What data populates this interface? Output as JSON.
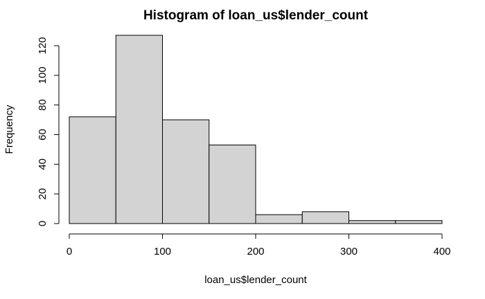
{
  "chart_data": {
    "type": "histogram",
    "title": "Histogram of loan_us$lender_count",
    "xlabel": "loan_us$lender_count",
    "ylabel": "Frequency",
    "bins": [
      {
        "start": 0,
        "end": 50,
        "count": 72
      },
      {
        "start": 50,
        "end": 100,
        "count": 127
      },
      {
        "start": 100,
        "end": 150,
        "count": 70
      },
      {
        "start": 150,
        "end": 200,
        "count": 53
      },
      {
        "start": 200,
        "end": 250,
        "count": 6
      },
      {
        "start": 250,
        "end": 300,
        "count": 8
      },
      {
        "start": 300,
        "end": 350,
        "count": 2
      },
      {
        "start": 350,
        "end": 400,
        "count": 2
      }
    ],
    "xlim": [
      0,
      400
    ],
    "ylim": [
      0,
      127
    ],
    "x_ticks": [
      0,
      100,
      200,
      300,
      400
    ],
    "y_ticks": [
      0,
      20,
      40,
      60,
      80,
      100,
      120
    ],
    "bar_fill": "#d3d3d3",
    "bar_stroke": "#000000",
    "grid": false
  }
}
